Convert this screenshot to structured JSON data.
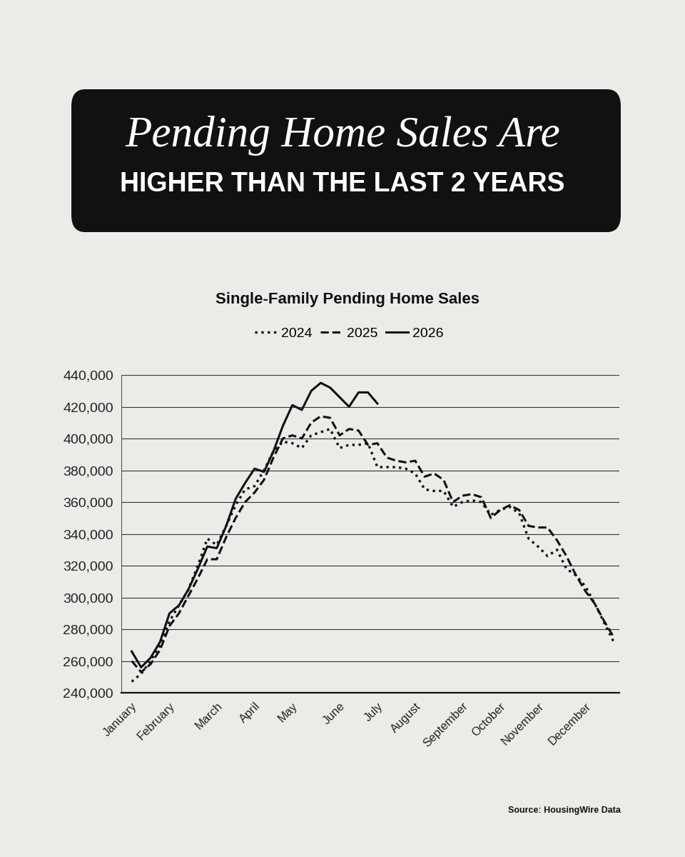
{
  "header": {
    "line1": "Pending Home Sales Are",
    "line2": "HIGHER THAN THE LAST 2 YEARS"
  },
  "chart_data": {
    "type": "line",
    "title": "Single-Family Pending Home Sales",
    "categories": [
      "January",
      null,
      null,
      null,
      "February",
      null,
      null,
      null,
      null,
      "March",
      null,
      null,
      null,
      "April",
      null,
      null,
      null,
      "May",
      null,
      null,
      null,
      null,
      "June",
      null,
      null,
      null,
      "July",
      null,
      null,
      null,
      "August",
      null,
      null,
      null,
      null,
      "September",
      null,
      null,
      null,
      "October",
      null,
      null,
      null,
      "November",
      null,
      null,
      null,
      null,
      "December",
      null,
      null,
      null
    ],
    "series": [
      {
        "name": "2024",
        "color": "#111111",
        "line_style": "dotted",
        "values": [
          247000,
          252000,
          260000,
          270000,
          285000,
          295000,
          305000,
          320000,
          337000,
          333000,
          345000,
          358000,
          368000,
          370000,
          380000,
          392000,
          398000,
          397000,
          394000,
          402000,
          404000,
          406000,
          394000,
          396000,
          396000,
          397000,
          382000,
          382000,
          382000,
          381000,
          378000,
          368000,
          367000,
          367000,
          357000,
          360000,
          361000,
          360000,
          352000,
          355000,
          357000,
          353000,
          337000,
          332000,
          326000,
          330000,
          318000,
          314000,
          307000,
          296000,
          284000,
          272000
        ]
      },
      {
        "name": "2025",
        "color": "#111111",
        "line_style": "dashed",
        "values": [
          260000,
          253000,
          258000,
          267000,
          282000,
          290000,
          301000,
          312000,
          324000,
          324000,
          338000,
          350000,
          360000,
          366000,
          374000,
          388000,
          400000,
          402000,
          400000,
          410000,
          414000,
          413000,
          402000,
          406000,
          405000,
          396000,
          397000,
          388000,
          386000,
          385000,
          386000,
          376000,
          378000,
          374000,
          360000,
          364000,
          365000,
          363000,
          350000,
          355000,
          358000,
          355000,
          345000,
          344000,
          344000,
          336000,
          326000,
          314000,
          304000,
          296000,
          285000,
          275000
        ]
      },
      {
        "name": "2026",
        "color": "#111111",
        "line_style": "solid",
        "values": [
          266000,
          256000,
          262000,
          272000,
          290000,
          295000,
          305000,
          318000,
          332000,
          331000,
          345000,
          362000,
          372000,
          381000,
          379000,
          392000,
          408000,
          421000,
          418000,
          430000,
          435000,
          432000,
          426000,
          420000,
          429000,
          429000,
          422000,
          null,
          null,
          null,
          null,
          null,
          null,
          null,
          null,
          null,
          null,
          null,
          null,
          null,
          null,
          null,
          null,
          null,
          null,
          null,
          null,
          null,
          null,
          null,
          null,
          null
        ]
      }
    ],
    "ylim": [
      240000,
      440000
    ],
    "yticks": [
      {
        "value": 240000,
        "label": "240,000"
      },
      {
        "value": 260000,
        "label": "260,000"
      },
      {
        "value": 280000,
        "label": "280,000"
      },
      {
        "value": 300000,
        "label": "300,000"
      },
      {
        "value": 320000,
        "label": "320,000"
      },
      {
        "value": 340000,
        "label": "340,000"
      },
      {
        "value": 360000,
        "label": "360,000"
      },
      {
        "value": 380000,
        "label": "380,000"
      },
      {
        "value": 400000,
        "label": "400,000"
      },
      {
        "value": 420000,
        "label": "420,000"
      },
      {
        "value": 440000,
        "label": "440,000"
      }
    ],
    "grid": true,
    "legend": "upper center"
  },
  "source": "Source: HousingWire Data"
}
